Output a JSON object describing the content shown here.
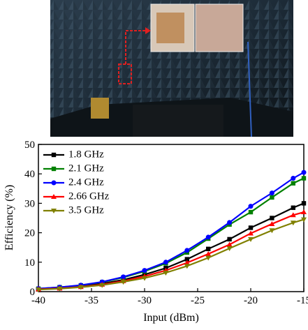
{
  "chart_data": {
    "type": "line",
    "x_label": "Input (dBm)",
    "y_label": "Efficiency (%)",
    "x": [
      -40,
      -38,
      -36,
      -34,
      -32,
      -30,
      -28,
      -26,
      -24,
      -22,
      -20,
      -18,
      -16,
      -15
    ],
    "xlim": [
      -40,
      -15
    ],
    "xticks": [
      -40,
      -35,
      -30,
      -25,
      -20,
      -15
    ],
    "ylim": [
      0,
      50
    ],
    "yticks": [
      0,
      10,
      20,
      30,
      40,
      50
    ],
    "legend": "upper left",
    "series": [
      {
        "name": "1.8 GHz",
        "color": "#000000",
        "marker": "square",
        "values": [
          0.8,
          1.2,
          1.8,
          2.7,
          4,
          5.8,
          8,
          11,
          14.5,
          17.8,
          21.7,
          25,
          28.5,
          30
        ]
      },
      {
        "name": "2.1 GHz",
        "color": "#008000",
        "marker": "square",
        "values": [
          1,
          1.5,
          2.1,
          3.2,
          4.8,
          6.9,
          9.6,
          13.3,
          18,
          22.8,
          27,
          32,
          36.8,
          38.5
        ]
      },
      {
        "name": "2.4 GHz",
        "color": "#0000ff",
        "marker": "circle",
        "values": [
          1,
          1.5,
          2.2,
          3.3,
          5,
          7.2,
          10,
          14,
          18.5,
          23.5,
          29,
          33.5,
          38.5,
          40.5
        ]
      },
      {
        "name": "2.66 GHz",
        "color": "#ff0000",
        "marker": "triangle-up",
        "values": [
          0.8,
          1.1,
          1.6,
          2.4,
          3.6,
          5.2,
          7.2,
          9.8,
          12.8,
          16,
          19.8,
          23,
          26,
          27
        ]
      },
      {
        "name": "3.5 GHz",
        "color": "#808000",
        "marker": "triangle-down",
        "values": [
          0.7,
          1,
          1.5,
          2.2,
          3.3,
          4.6,
          6.4,
          8.7,
          11.5,
          14.7,
          17.8,
          20.8,
          23.4,
          24.5
        ]
      }
    ]
  }
}
